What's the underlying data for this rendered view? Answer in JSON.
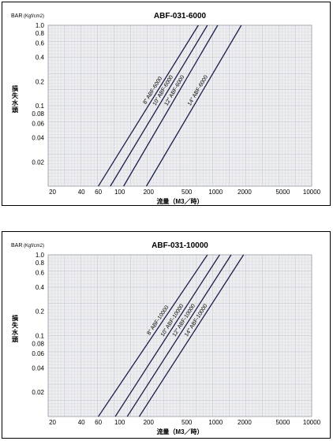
{
  "chart_data": [
    {
      "type": "line",
      "title": "ABF-031-6000",
      "bar_label": "BAR",
      "unit_label": "(Kgf/cm2)",
      "ylabel": "損失水頭",
      "xlabel": "流量（M3／時）",
      "xscale": "log",
      "yscale": "log",
      "xlim": [
        18,
        10000
      ],
      "ylim": [
        0.01,
        1.0
      ],
      "grid": true,
      "y_ticks": [
        "1.0",
        "0.8",
        "0.6",
        "0.4",
        "0.2",
        "0.1",
        "0.08",
        "0.06",
        "0.04",
        "0.02"
      ],
      "x_ticks": [
        "20",
        "40",
        "60",
        "100",
        "200",
        "500",
        "1000",
        "2000",
        "5000",
        "10000"
      ],
      "series": [
        {
          "name": "8\" ABF-6000",
          "x": [
            60,
            660
          ],
          "y": [
            0.01,
            1.0
          ]
        },
        {
          "name": "10\" ABF-6000",
          "x": [
            80,
            820
          ],
          "y": [
            0.01,
            1.0
          ]
        },
        {
          "name": "12\" ABF-6000",
          "x": [
            110,
            1050
          ],
          "y": [
            0.01,
            1.0
          ]
        },
        {
          "name": "14\" ABF-6000",
          "x": [
            190,
            1850
          ],
          "y": [
            0.01,
            1.0
          ]
        }
      ]
    },
    {
      "type": "line",
      "title": "ABF-031-10000",
      "bar_label": "BAR",
      "unit_label": "(Kgf/cm2)",
      "ylabel": "損失水頭",
      "xlabel": "流量（M3／時）",
      "xscale": "log",
      "yscale": "log",
      "xlim": [
        18,
        10000
      ],
      "ylim": [
        0.01,
        1.0
      ],
      "grid": true,
      "y_ticks": [
        "1.0",
        "0.8",
        "0.6",
        "0.4",
        "0.2",
        "0.1",
        "0.08",
        "0.06",
        "0.04",
        "0.02"
      ],
      "x_ticks": [
        "20",
        "40",
        "60",
        "100",
        "200",
        "500",
        "1000",
        "2000",
        "5000",
        "10000"
      ],
      "series": [
        {
          "name": "8\" ABF-10000",
          "x": [
            60,
            820
          ],
          "y": [
            0.01,
            1.0
          ]
        },
        {
          "name": "10\" ABF-10000",
          "x": [
            90,
            1100
          ],
          "y": [
            0.01,
            1.0
          ]
        },
        {
          "name": "12\" ABF-10000",
          "x": [
            120,
            1450
          ],
          "y": [
            0.01,
            1.0
          ]
        },
        {
          "name": "14\" ABF-10000",
          "x": [
            160,
            1950
          ],
          "y": [
            0.01,
            1.0
          ]
        }
      ]
    }
  ]
}
